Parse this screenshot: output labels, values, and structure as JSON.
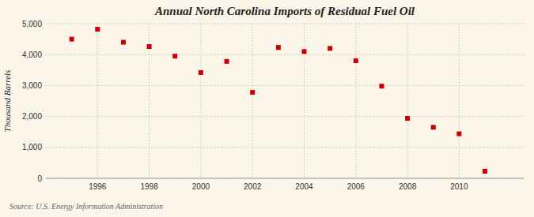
{
  "chart_data": {
    "type": "scatter",
    "title": "Annual North Carolina Imports of Residual Fuel Oil",
    "y_label": "Thousand Barrels",
    "source": "Source: U.S. Energy Information Administration",
    "x": [
      1995,
      1996,
      1997,
      1998,
      1999,
      2000,
      2001,
      2002,
      2003,
      2004,
      2005,
      2006,
      2007,
      2008,
      2009,
      2010,
      2011
    ],
    "values": [
      4500,
      4820,
      4400,
      4260,
      3950,
      3420,
      3780,
      2780,
      4230,
      4100,
      4200,
      3800,
      2980,
      1940,
      1650,
      1440,
      230
    ],
    "color": "#cc0000",
    "marker": "square",
    "xlim": [
      1994.0,
      2012.5
    ],
    "xticks": [
      1996,
      1998,
      2000,
      2002,
      2004,
      2006,
      2008,
      2010
    ],
    "ylim": [
      0,
      5000
    ],
    "yticks": [
      0,
      {
        "value": 1000,
        "label": "1,000"
      },
      {
        "value": 2000,
        "label": "2,000"
      },
      {
        "value": 3000,
        "label": "3,000"
      },
      {
        "value": 4000,
        "label": "4,000"
      },
      {
        "value": 5000,
        "label": "5,000"
      }
    ],
    "grid": true
  }
}
